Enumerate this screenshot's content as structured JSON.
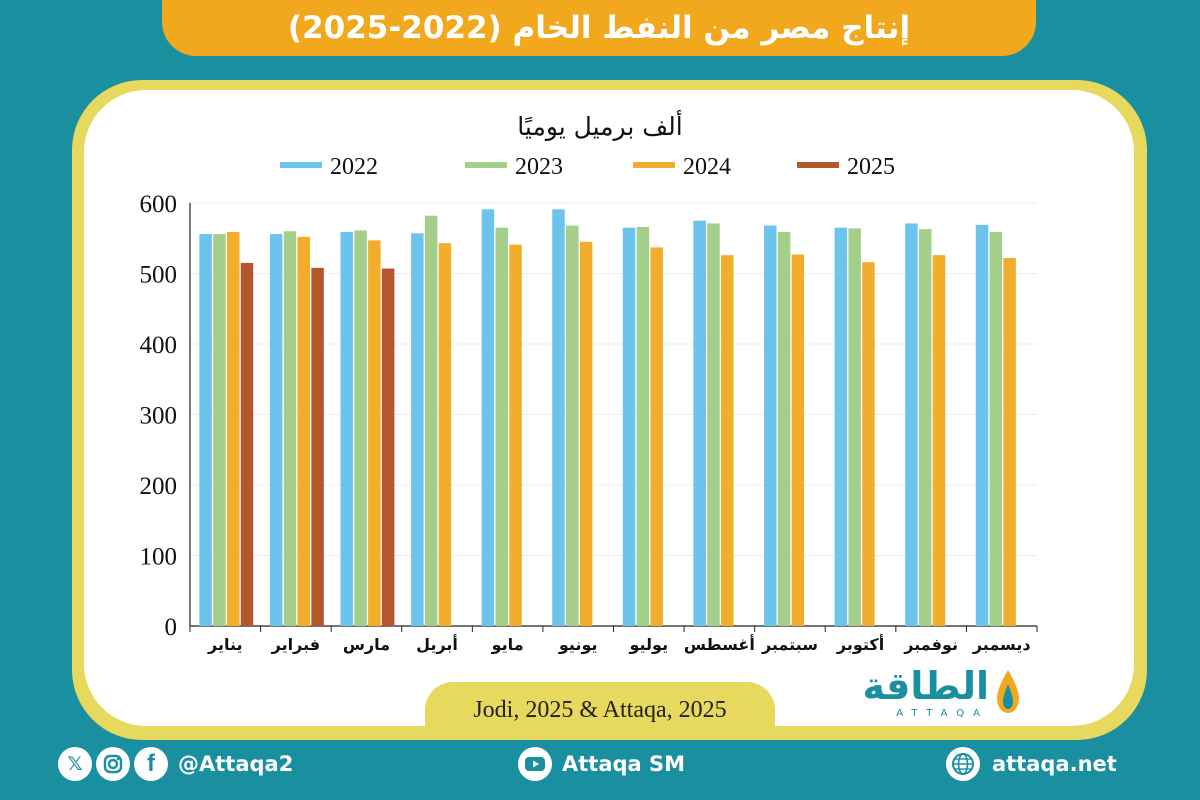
{
  "header": {
    "title": "إنتاج مصر من النفط الخام (2022-2025)"
  },
  "chart_data": {
    "type": "bar",
    "title": "إنتاج مصر من النفط الخام (2022-2025)",
    "ylabel": "ألف برميل يوميًا",
    "xlabel": "",
    "ylim": [
      0,
      600
    ],
    "yticks": [
      0,
      100,
      200,
      300,
      400,
      500,
      600
    ],
    "legend_position": "top-center",
    "categories": [
      "يناير",
      "فبراير",
      "مارس",
      "أبريل",
      "مايو",
      "يونيو",
      "يوليو",
      "أغسطس",
      "سبتمبر",
      "أكتوبر",
      "نوفمبر",
      "ديسمبر"
    ],
    "series": [
      {
        "name": "2022",
        "color": "#6cc3ec",
        "values": [
          556,
          556,
          559,
          557,
          591,
          591,
          565,
          575,
          568,
          565,
          571,
          569
        ]
      },
      {
        "name": "2023",
        "color": "#a4cf8a",
        "values": [
          556,
          560,
          561,
          582,
          565,
          568,
          566,
          571,
          559,
          564,
          563,
          559
        ]
      },
      {
        "name": "2024",
        "color": "#f2ad2c",
        "values": [
          559,
          552,
          547,
          543,
          541,
          545,
          537,
          526,
          527,
          516,
          526,
          522
        ]
      },
      {
        "name": "2025",
        "color": "#b5572a",
        "values": [
          515,
          508,
          507,
          null,
          null,
          null,
          null,
          null,
          null,
          null,
          null,
          null
        ]
      }
    ]
  },
  "source": {
    "text": "Jodi, 2025 & Attaqa, 2025"
  },
  "logo": {
    "arabic": "الطاقة",
    "english": "ATTAQA"
  },
  "footer": {
    "social_handle": "@Attaqa2",
    "youtube_label": "Attaqa SM",
    "website": "attaqa.net"
  }
}
